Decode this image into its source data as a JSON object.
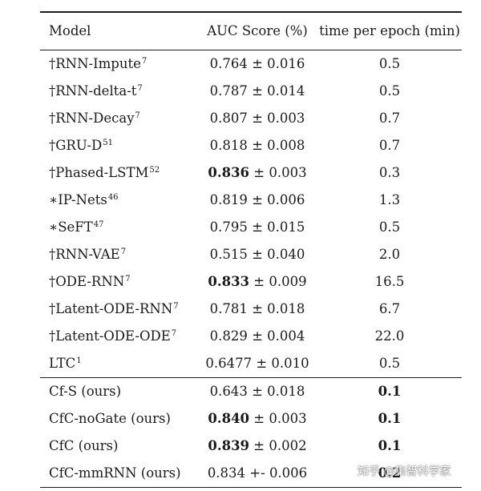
{
  "header": {
    "model": "Model",
    "auc": "AUC Score (%)",
    "time": "time per epoch (min)"
  },
  "group1": [
    {
      "name": "†RNN-Impute",
      "sup": "7",
      "auc_bold": "",
      "auc_rest": "0.764 ± 0.016",
      "time": "0.5",
      "time_bold": false
    },
    {
      "name": "†RNN-delta-t",
      "sup": "7",
      "auc_bold": "",
      "auc_rest": "0.787 ± 0.014",
      "time": "0.5",
      "time_bold": false
    },
    {
      "name": "†RNN-Decay",
      "sup": "7",
      "auc_bold": "",
      "auc_rest": "0.807 ± 0.003",
      "time": "0.7",
      "time_bold": false
    },
    {
      "name": "†GRU-D",
      "sup": "51",
      "auc_bold": "",
      "auc_rest": "0.818 ± 0.008",
      "time": "0.7",
      "time_bold": false
    },
    {
      "name": "†Phased-LSTM",
      "sup": "52",
      "auc_bold": "0.836",
      "auc_rest": " ± 0.003",
      "time": "0.3",
      "time_bold": false
    },
    {
      "name": "∗IP-Nets",
      "sup": "46",
      "auc_bold": "",
      "auc_rest": "0.819 ± 0.006",
      "time": "1.3",
      "time_bold": false
    },
    {
      "name": "∗SeFT",
      "sup": "47",
      "auc_bold": "",
      "auc_rest": "0.795 ± 0.015",
      "time": "0.5",
      "time_bold": false
    },
    {
      "name": "†RNN-VAE",
      "sup": "7",
      "auc_bold": "",
      "auc_rest": "0.515 ± 0.040",
      "time": "2.0",
      "time_bold": false
    },
    {
      "name": "†ODE-RNN",
      "sup": "7",
      "auc_bold": "0.833",
      "auc_rest": " ± 0.009",
      "time": "16.5",
      "time_bold": false
    },
    {
      "name": "†Latent-ODE-RNN",
      "sup": "7",
      "auc_bold": "",
      "auc_rest": "0.781 ± 0.018",
      "time": "6.7",
      "time_bold": false
    },
    {
      "name": "†Latent-ODE-ODE",
      "sup": "7",
      "auc_bold": "",
      "auc_rest": "0.829 ± 0.004",
      "time": "22.0",
      "time_bold": false
    },
    {
      "name": "LTC",
      "sup": "1",
      "auc_bold": "",
      "auc_rest": "0.6477 ± 0.010",
      "time": "0.5",
      "time_bold": false
    }
  ],
  "group2": [
    {
      "name": "Cf-S (ours)",
      "sup": "",
      "auc_bold": "",
      "auc_rest": "0.643 ± 0.018",
      "time": "0.1",
      "time_bold": true
    },
    {
      "name": "CfC-noGate (ours)",
      "sup": "",
      "auc_bold": "0.840",
      "auc_rest": " ± 0.003",
      "time": "0.1",
      "time_bold": true
    },
    {
      "name": "CfC (ours)",
      "sup": "",
      "auc_bold": "0.839",
      "auc_rest": " ± 0.002",
      "time": "0.1",
      "time_bold": true
    },
    {
      "name": "CfC-mmRNN (ours)",
      "sup": "",
      "auc_bold": "",
      "auc_rest": "0.834 +- 0.006",
      "time": "0.2",
      "time_bold": true
    }
  ],
  "watermark": "知乎 @集智科学家"
}
